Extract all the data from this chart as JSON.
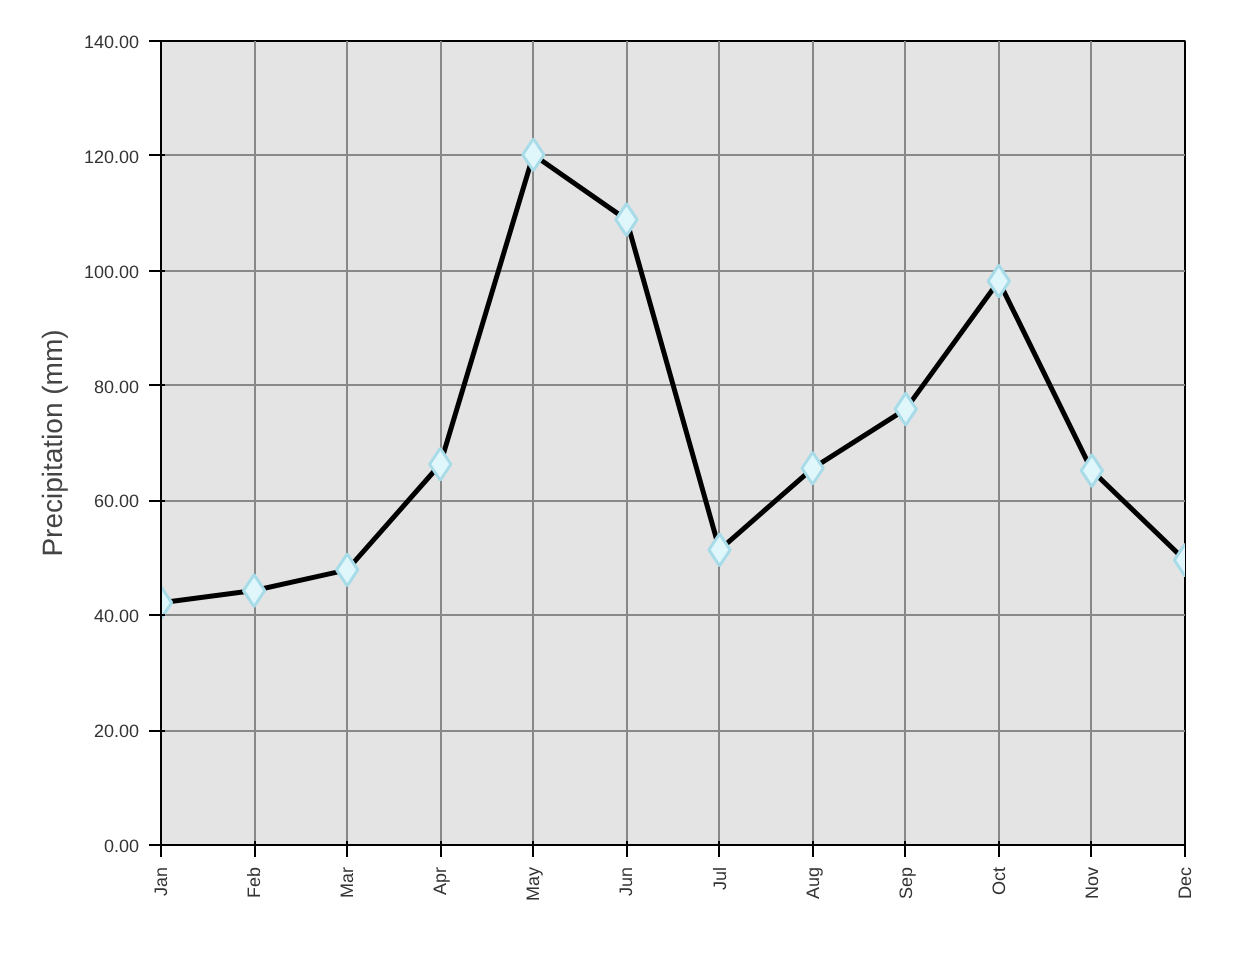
{
  "chart_data": {
    "type": "line",
    "ylabel": "Precipitation (mm)",
    "categories": [
      "Jan",
      "Feb",
      "Mar",
      "Apr",
      "May",
      "Jun",
      "Jul",
      "Aug",
      "Sep",
      "Oct",
      "Nov",
      "Dec"
    ],
    "series": [
      {
        "color": "#000000",
        "values": [
          42.2,
          44.3,
          47.9,
          66.3,
          120.2,
          108.9,
          51.4,
          65.6,
          75.9,
          98.2,
          65.2,
          49.6
        ]
      }
    ],
    "ylim": [
      0,
      140
    ],
    "yticks": [
      {
        "value": 0,
        "label": "0.00"
      },
      {
        "value": 20,
        "label": "20.00"
      },
      {
        "value": 40,
        "label": "40.00"
      },
      {
        "value": 60,
        "label": "60.00"
      },
      {
        "value": 80,
        "label": "80.00"
      },
      {
        "value": 100,
        "label": "100.00"
      },
      {
        "value": 120,
        "label": "120.00"
      },
      {
        "value": 140,
        "label": "140.00"
      }
    ],
    "grid": true,
    "marker": "diamond",
    "line_style": "solid"
  }
}
